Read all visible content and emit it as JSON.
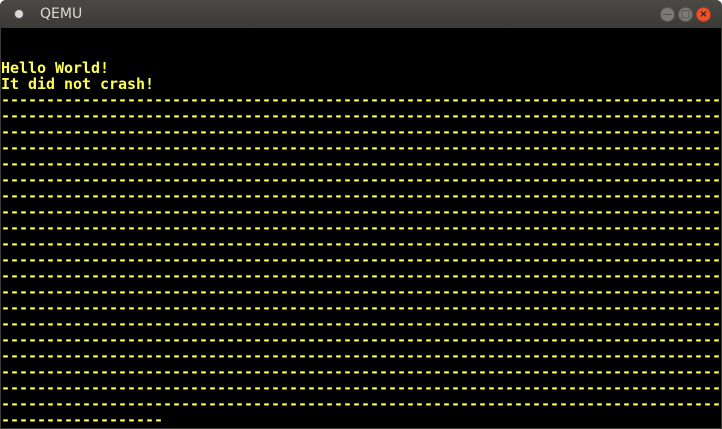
{
  "window": {
    "title": "QEMU"
  },
  "colors": {
    "text": "#ffff55",
    "background": "#000000"
  },
  "screen": {
    "lines": [
      "",
      "",
      "Hello World!",
      "It did not crash!",
      "--------------------------------------------------------------------------------",
      "--------------------------------------------------------------------------------",
      "--------------------------------------------------------------------------------",
      "--------------------------------------------------------------------------------",
      "--------------------------------------------------------------------------------",
      "--------------------------------------------------------------------------------",
      "--------------------------------------------------------------------------------",
      "--------------------------------------------------------------------------------",
      "--------------------------------------------------------------------------------",
      "--------------------------------------------------------------------------------",
      "--------------------------------------------------------------------------------",
      "--------------------------------------------------------------------------------",
      "--------------------------------------------------------------------------------",
      "--------------------------------------------------------------------------------",
      "--------------------------------------------------------------------------------",
      "--------------------------------------------------------------------------------",
      "--------------------------------------------------------------------------------",
      "--------------------------------------------------------------------------------",
      "--------------------------------------------------------------------------------",
      "--------------------------------------------------------------------------------",
      "------------------"
    ]
  }
}
